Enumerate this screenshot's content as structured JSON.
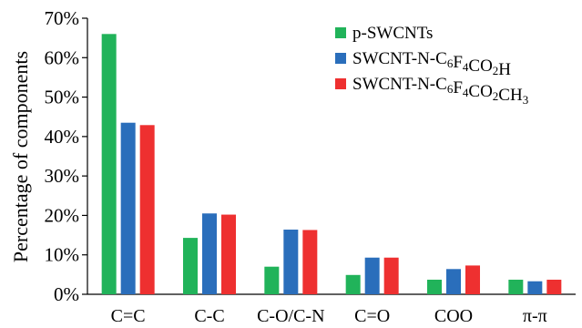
{
  "chart_data": {
    "type": "bar",
    "title": "",
    "xlabel": "",
    "ylabel": "Percentage of components",
    "ylim": [
      0,
      70
    ],
    "yticks": [
      0,
      10,
      20,
      30,
      40,
      50,
      60,
      70
    ],
    "ytick_suffix": "%",
    "grid": false,
    "legend_position": "top-right",
    "categories": [
      "C=C",
      "C-C",
      "C-O/C-N",
      "C=O",
      "COO",
      "π-π"
    ],
    "series": [
      {
        "name": "p-SWCNTs",
        "name_parts": [
          {
            "t": "p-SWCNTs"
          }
        ],
        "color": "#21b35a",
        "values": [
          66.0,
          14.3,
          7.0,
          4.9,
          3.7,
          3.7
        ]
      },
      {
        "name": "SWCNT-N-C6F4CO2H",
        "name_parts": [
          {
            "t": "SWCNT-N-C"
          },
          {
            "t": "6",
            "sub": true
          },
          {
            "t": "F"
          },
          {
            "t": "4",
            "sub": true
          },
          {
            "t": "CO"
          },
          {
            "t": "2",
            "sub": true
          },
          {
            "t": "H"
          }
        ],
        "color": "#2a6ebb",
        "values": [
          43.5,
          20.5,
          16.4,
          9.3,
          6.4,
          3.3
        ]
      },
      {
        "name": "SWCNT-N-C6F4CO2CH3",
        "name_parts": [
          {
            "t": "SWCNT-N-C"
          },
          {
            "t": "6",
            "sub": true
          },
          {
            "t": "F"
          },
          {
            "t": "4",
            "sub": true
          },
          {
            "t": "CO"
          },
          {
            "t": "2",
            "sub": true
          },
          {
            "t": "CH"
          },
          {
            "t": "3",
            "sub": true
          }
        ],
        "color": "#ee3030",
        "values": [
          42.9,
          20.2,
          16.3,
          9.3,
          7.3,
          3.7
        ]
      }
    ]
  }
}
